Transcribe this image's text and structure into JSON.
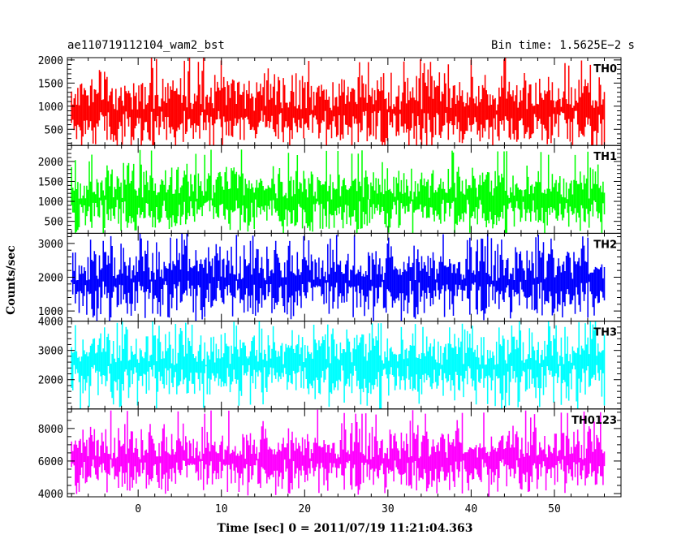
{
  "chart_data": {
    "type": "line",
    "title": "ae110719112104_wam2_bst",
    "bin_time": "Bin time: 1.5625E−2 s",
    "xlabel": "Time [sec] 0 = 2011/07/19 11:21:04.363",
    "ylabel": "Counts/sec",
    "xlim": [
      -8.5,
      58
    ],
    "data_x_range": [
      -8,
      56
    ],
    "x_ticks": [
      0,
      10,
      20,
      30,
      40,
      50
    ],
    "x_tick_labels": [
      "0",
      "10",
      "20",
      "30",
      "40",
      "50"
    ],
    "grid": false,
    "panels": [
      {
        "name": "TH0",
        "color": "#ff0000",
        "ylim": [
          150,
          2050
        ],
        "y_ticks": [
          500,
          1000,
          1500,
          2000
        ],
        "y_tick_labels": [
          "500",
          "1000",
          "1500",
          "2000"
        ],
        "mean": 900,
        "typical_range": [
          300,
          1800
        ],
        "extremes": [
          200,
          2050
        ]
      },
      {
        "name": "TH1",
        "color": "#00ff00",
        "ylim": [
          200,
          2400
        ],
        "y_ticks": [
          500,
          1000,
          1500,
          2000
        ],
        "y_tick_labels": [
          "500",
          "1000",
          "1500",
          "2000"
        ],
        "mean": 1050,
        "typical_range": [
          400,
          1900
        ],
        "extremes": [
          250,
          2300
        ]
      },
      {
        "name": "TH2",
        "color": "#0000ff",
        "ylim": [
          700,
          3300
        ],
        "y_ticks": [
          1000,
          2000,
          3000
        ],
        "y_tick_labels": [
          "1000",
          "2000",
          "3000"
        ],
        "mean": 1900,
        "typical_range": [
          1000,
          3000
        ],
        "extremes": [
          800,
          3300
        ]
      },
      {
        "name": "TH3",
        "color": "#00ffff",
        "ylim": [
          1000,
          4000
        ],
        "y_ticks": [
          2000,
          3000,
          4000
        ],
        "y_tick_labels": [
          "2000",
          "3000",
          "4000"
        ],
        "mean": 2500,
        "typical_range": [
          1400,
          3700
        ],
        "extremes": [
          1000,
          4000
        ]
      },
      {
        "name": "TH0123",
        "color": "#ff00ff",
        "ylim": [
          3800,
          9200
        ],
        "y_ticks": [
          4000,
          6000,
          8000
        ],
        "y_tick_labels": [
          "4000",
          "6000",
          "8000"
        ],
        "mean": 6100,
        "typical_range": [
          4500,
          8200
        ],
        "extremes": [
          4000,
          9200
        ]
      }
    ]
  }
}
